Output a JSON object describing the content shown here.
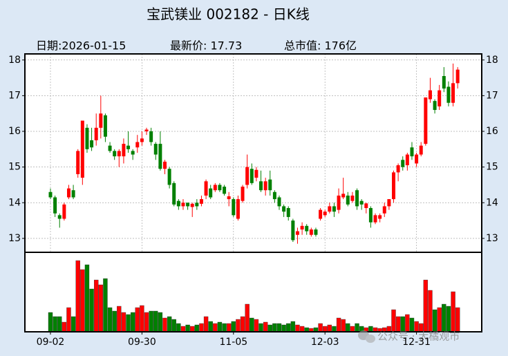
{
  "chart_data": {
    "type": "candlestick",
    "title": "宝武镁业 002182 - 日K线",
    "info": [
      "日期:2026-01-15",
      "最新价: 17.73",
      "总市值: 176亿"
    ],
    "categories": [
      "09-02",
      null,
      null,
      null,
      null,
      null,
      null,
      null,
      null,
      null,
      null,
      null,
      null,
      null,
      null,
      null,
      null,
      null,
      null,
      null,
      "09-30",
      null,
      null,
      null,
      null,
      null,
      null,
      null,
      null,
      null,
      null,
      null,
      null,
      null,
      null,
      null,
      null,
      null,
      null,
      null,
      "11-05",
      null,
      null,
      null,
      null,
      null,
      null,
      null,
      null,
      null,
      null,
      null,
      null,
      null,
      null,
      null,
      null,
      null,
      null,
      null,
      "12-03",
      null,
      null,
      null,
      null,
      null,
      null,
      null,
      null,
      null,
      null,
      null,
      null,
      null,
      null,
      null,
      null,
      null,
      null,
      null,
      "12-31",
      null,
      null,
      null,
      null,
      null,
      null,
      null,
      null,
      null
    ],
    "open": [
      14.3,
      14.15,
      13.65,
      13.55,
      14.15,
      14.35,
      14.8,
      14.7,
      16.1,
      15.75,
      15.75,
      16.1,
      16.45,
      15.6,
      15.45,
      15.3,
      15.3,
      15.6,
      15.45,
      15.55,
      15.7,
      16.0,
      16.0,
      15.65,
      15.65,
      14.95,
      14.95,
      14.55,
      14.05,
      13.9,
      14.0,
      13.88,
      14.0,
      13.97,
      14.2,
      14.4,
      14.35,
      14.5,
      14.45,
      14.1,
      14.1,
      13.55,
      14.05,
      14.5,
      14.95,
      14.7,
      14.6,
      14.35,
      14.65,
      14.3,
      14.15,
      13.9,
      13.85,
      13.5,
      13.1,
      13.25,
      13.35,
      13.1,
      13.25,
      13.55,
      13.65,
      13.75,
      13.9,
      13.8,
      14.15,
      14.2,
      14.05,
      14.35,
      14.05,
      13.85,
      13.85,
      13.45,
      13.55,
      13.7,
      13.9,
      14.1,
      14.85,
      15.2,
      15.05,
      15.55,
      15.1,
      15.35,
      15.65,
      16.9,
      16.85,
      16.7,
      17.55,
      17.25,
      16.8,
      17.35
    ],
    "close": [
      14.15,
      13.7,
      13.55,
      13.95,
      14.4,
      14.15,
      15.45,
      16.3,
      15.5,
      15.55,
      16.1,
      16.5,
      15.85,
      15.45,
      15.3,
      15.45,
      15.65,
      15.5,
      15.35,
      15.7,
      15.8,
      16.05,
      15.7,
      15.35,
      14.95,
      15.15,
      14.5,
      13.95,
      13.9,
      14.0,
      13.9,
      13.97,
      13.9,
      14.1,
      14.6,
      14.15,
      14.5,
      14.35,
      14.25,
      14.18,
      13.65,
      14.1,
      14.45,
      15.0,
      14.55,
      14.92,
      14.35,
      14.6,
      14.35,
      14.1,
      13.9,
      13.75,
      13.6,
      12.95,
      13.2,
      13.35,
      13.2,
      13.25,
      13.1,
      13.8,
      13.75,
      13.9,
      13.75,
      14.2,
      14.25,
      13.95,
      14.2,
      13.9,
      13.95,
      13.98,
      13.45,
      13.65,
      13.65,
      13.9,
      14.1,
      14.85,
      15.05,
      15.0,
      15.35,
      15.3,
      15.35,
      15.6,
      16.95,
      17.15,
      16.6,
      17.15,
      17.2,
      16.8,
      17.35,
      17.73
    ],
    "high": [
      14.4,
      14.2,
      13.7,
      14.0,
      14.5,
      14.5,
      15.5,
      16.3,
      16.2,
      16.1,
      16.5,
      17.0,
      16.5,
      15.7,
      15.5,
      15.5,
      15.8,
      16.0,
      15.5,
      15.9,
      16.0,
      16.1,
      16.1,
      15.7,
      16.0,
      15.2,
      15.0,
      14.6,
      14.1,
      14.1,
      14.0,
      14.0,
      14.1,
      14.2,
      14.65,
      14.5,
      14.55,
      14.55,
      14.5,
      14.3,
      14.15,
      14.2,
      14.5,
      15.35,
      15.1,
      15.0,
      14.9,
      14.7,
      14.9,
      14.35,
      14.2,
      13.95,
      13.9,
      13.55,
      13.3,
      13.45,
      13.4,
      13.3,
      13.3,
      13.85,
      13.8,
      14.0,
      14.0,
      14.4,
      14.7,
      14.3,
      14.3,
      14.4,
      14.1,
      14.0,
      13.9,
      13.7,
      13.7,
      14.0,
      14.1,
      14.9,
      15.1,
      15.3,
      15.4,
      15.7,
      15.4,
      15.7,
      16.95,
      17.5,
      16.9,
      17.3,
      17.8,
      17.4,
      17.9,
      17.8
    ],
    "low": [
      14.1,
      13.6,
      13.3,
      13.5,
      14.1,
      14.1,
      14.7,
      14.5,
      15.4,
      15.45,
      15.6,
      15.8,
      15.7,
      15.4,
      15.2,
      15.0,
      15.1,
      15.4,
      15.2,
      15.4,
      15.6,
      15.9,
      15.6,
      15.2,
      14.9,
      14.8,
      14.4,
      13.9,
      13.8,
      13.8,
      13.8,
      13.6,
      13.8,
      13.9,
      14.1,
      14.1,
      14.3,
      14.3,
      14.2,
      13.9,
      13.6,
      13.5,
      14.0,
      14.4,
      14.5,
      14.6,
      14.3,
      14.2,
      14.2,
      14.0,
      13.8,
      13.6,
      13.5,
      12.9,
      12.85,
      13.1,
      13.1,
      13.05,
      13.05,
      13.5,
      13.6,
      13.7,
      13.6,
      13.7,
      14.1,
      13.9,
      14.0,
      13.8,
      13.8,
      13.7,
      13.3,
      13.4,
      13.45,
      13.6,
      13.8,
      14.0,
      14.6,
      14.9,
      14.9,
      15.2,
      15.0,
      15.3,
      15.6,
      16.8,
      16.5,
      16.6,
      17.1,
      16.7,
      16.7,
      17.2
    ],
    "volume": [
      28,
      22,
      22,
      14,
      35,
      22,
      103,
      90,
      97,
      62,
      75,
      68,
      77,
      35,
      30,
      37,
      28,
      25,
      28,
      35,
      38,
      28,
      30,
      30,
      28,
      20,
      22,
      18,
      12,
      8,
      10,
      8,
      10,
      12,
      22,
      15,
      12,
      14,
      12,
      12,
      15,
      18,
      22,
      40,
      20,
      18,
      12,
      14,
      10,
      12,
      12,
      10,
      12,
      15,
      10,
      8,
      6,
      5,
      6,
      12,
      8,
      10,
      8,
      20,
      18,
      12,
      8,
      12,
      8,
      6,
      8,
      6,
      5,
      6,
      8,
      32,
      22,
      22,
      25,
      20,
      15,
      12,
      75,
      60,
      32,
      35,
      40,
      37,
      58,
      35
    ],
    "ylim": [
      12.61,
      18.17
    ],
    "yticks": [
      13,
      14,
      15,
      16,
      17,
      18
    ],
    "grid": true,
    "up_color": "#ff0000",
    "down_color": "#008000",
    "watermark": "公众号 · 大橘观市"
  }
}
